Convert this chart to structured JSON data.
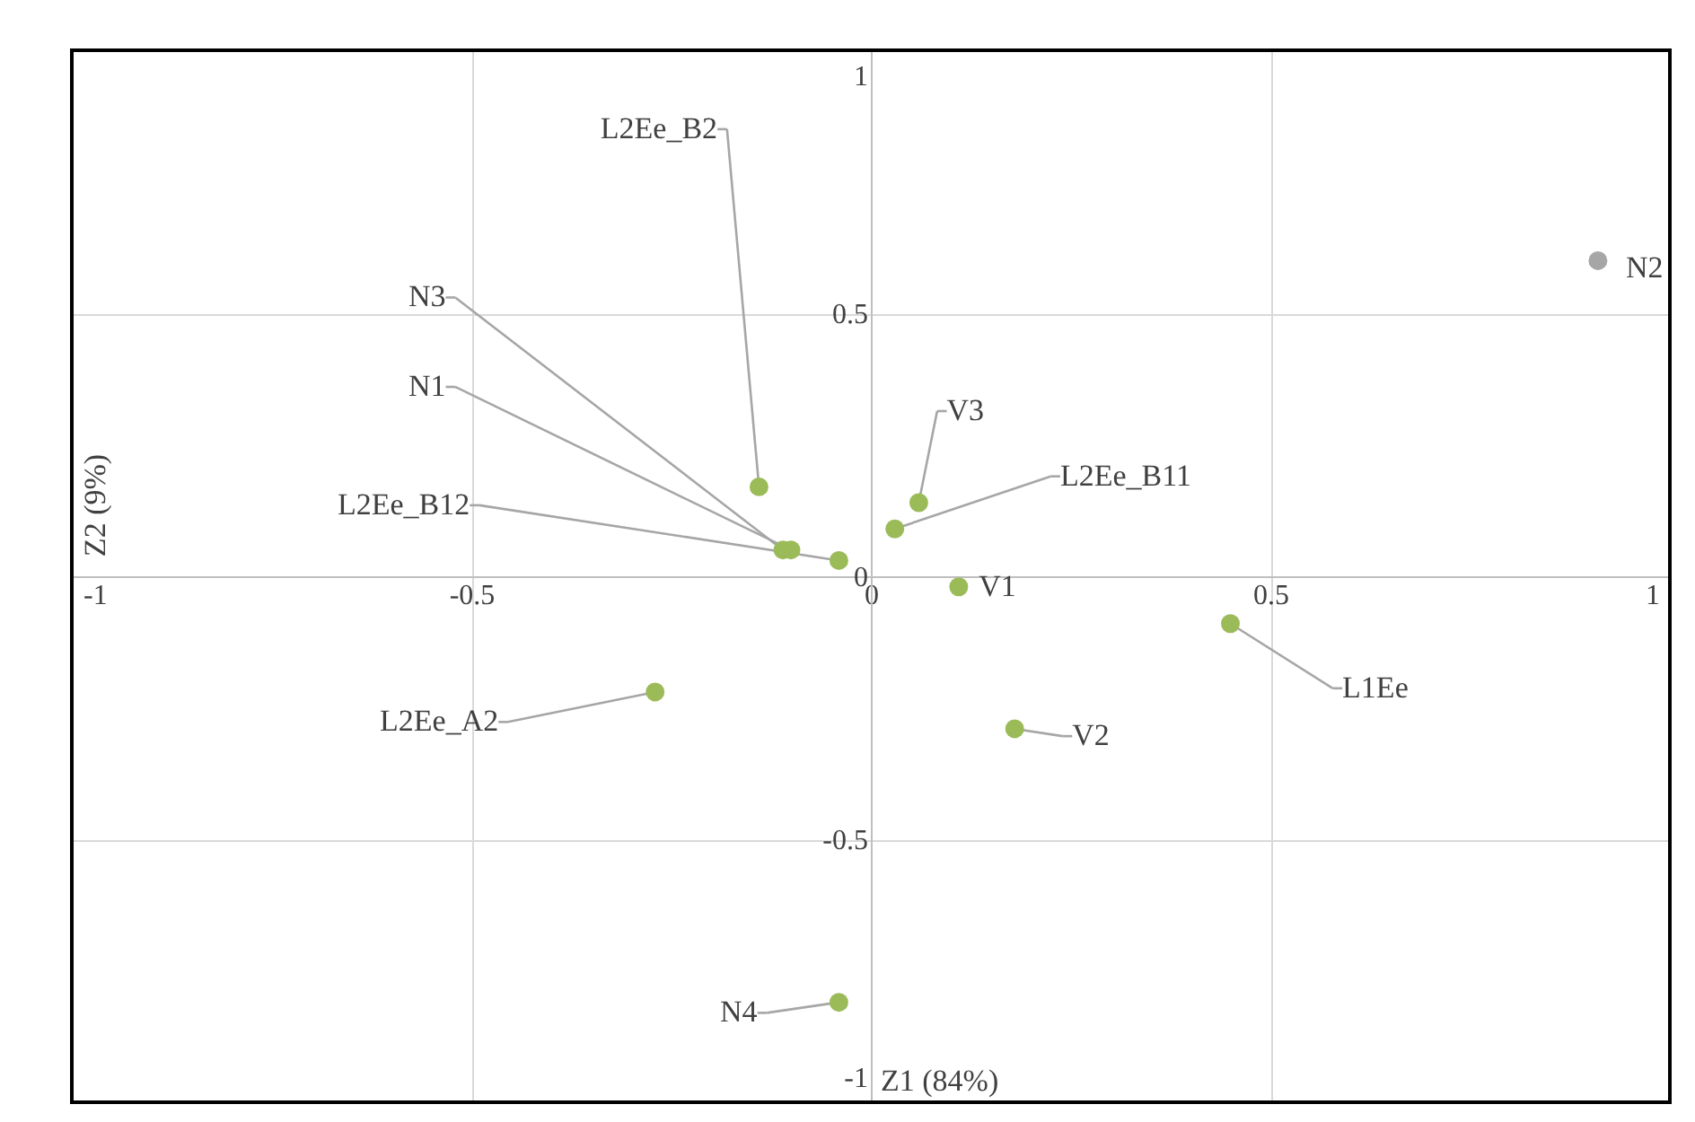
{
  "chart_data": {
    "type": "scatter",
    "xlabel": "Z1 (84%)",
    "ylabel": "Z2 (9%)",
    "xlim": [
      -1,
      1
    ],
    "ylim": [
      -1,
      1
    ],
    "xticks": [
      -1,
      -0.5,
      0,
      0.5,
      1
    ],
    "yticks": [
      -1,
      -0.5,
      0,
      0.5,
      1
    ],
    "grid": true,
    "marker": "circle",
    "series": [
      {
        "color": "#9bbb59",
        "x": [
          -0.14,
          -0.11,
          -0.1,
          -0.04,
          0.06,
          0.03,
          0.11,
          0.45,
          0.18,
          -0.27,
          -0.04
        ],
        "values": [
          0.17,
          0.05,
          0.05,
          0.03,
          0.14,
          0.09,
          -0.02,
          -0.09,
          -0.29,
          -0.22,
          -0.81
        ]
      },
      {
        "color": "#a6a6a6",
        "x": [
          0.91
        ],
        "values": [
          0.6
        ]
      }
    ],
    "annotations": [
      {
        "text": "L2Ee_B2",
        "x": -0.14,
        "y": 0.17
      },
      {
        "text": "N3",
        "x": -0.11,
        "y": 0.05
      },
      {
        "text": "N1",
        "x": -0.1,
        "y": 0.05
      },
      {
        "text": "L2Ee_B12",
        "x": -0.04,
        "y": 0.03
      },
      {
        "text": "V3",
        "x": 0.06,
        "y": 0.14
      },
      {
        "text": "L2Ee_B11",
        "x": 0.03,
        "y": 0.09
      },
      {
        "text": "V1",
        "x": 0.11,
        "y": -0.02
      },
      {
        "text": "L1Ee",
        "x": 0.45,
        "y": -0.09
      },
      {
        "text": "V2",
        "x": 0.18,
        "y": -0.29
      },
      {
        "text": "L2Ee_A2",
        "x": -0.27,
        "y": -0.22
      },
      {
        "text": "N4",
        "x": -0.04,
        "y": -0.81
      },
      {
        "text": "N2",
        "x": 0.91,
        "y": 0.6
      }
    ]
  }
}
